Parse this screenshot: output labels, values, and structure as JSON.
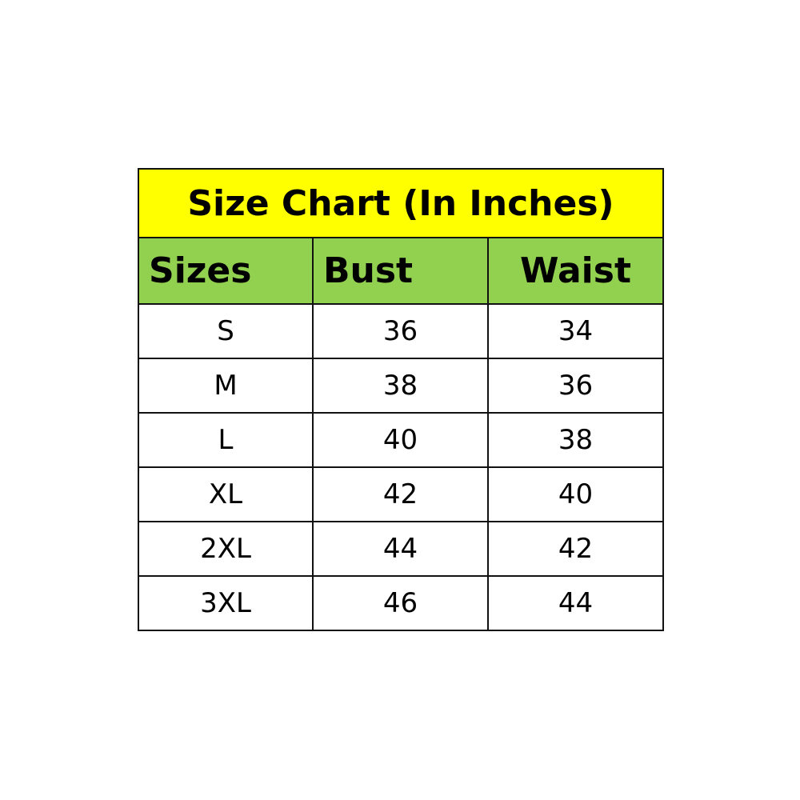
{
  "title": "Size Chart (In Inches)",
  "headers": [
    "Sizes",
    "Bust",
    "Waist"
  ],
  "rows": [
    [
      "S",
      "36",
      "34"
    ],
    [
      "M",
      "38",
      "36"
    ],
    [
      "L",
      "40",
      "38"
    ],
    [
      "XL",
      "42",
      "40"
    ],
    [
      "2XL",
      "44",
      "42"
    ],
    [
      "3XL",
      "46",
      "44"
    ]
  ],
  "colors": {
    "title_bg": "#FFFF00",
    "header_bg": "#92D050",
    "border": "#111111"
  }
}
